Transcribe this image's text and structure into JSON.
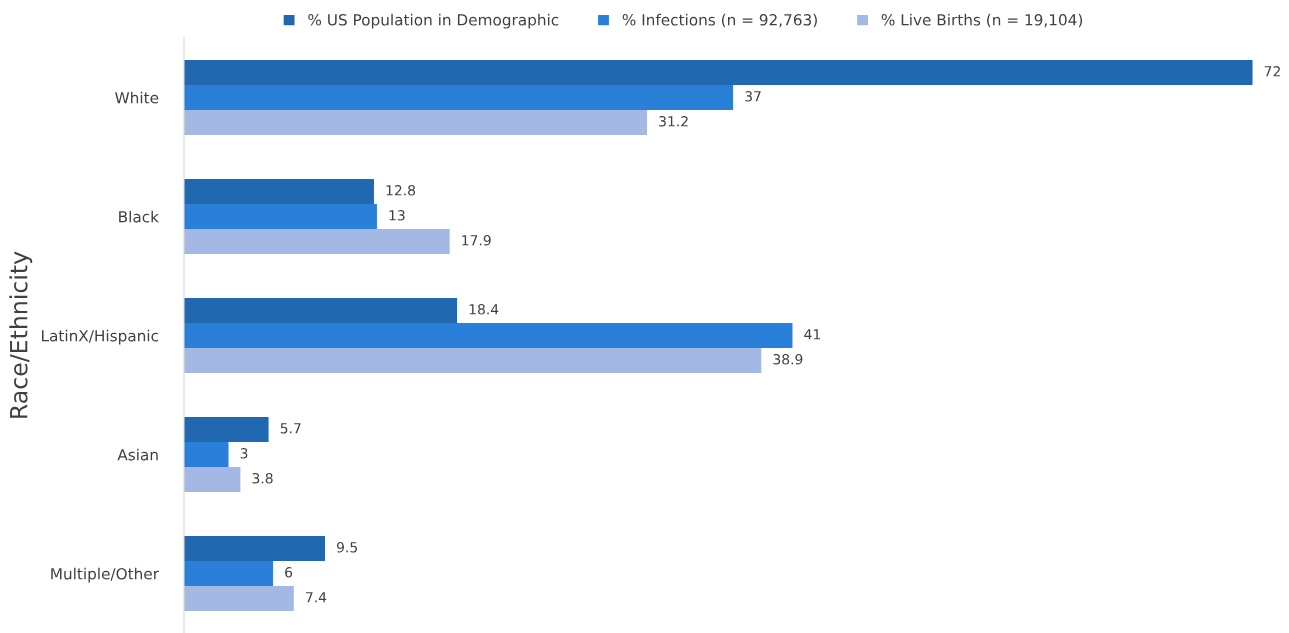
{
  "chart_data": {
    "type": "bar",
    "orientation": "horizontal",
    "ylabel": "Race/Ethnicity",
    "categories": [
      "White",
      "Black",
      "LatinX/Hispanic",
      "Asian",
      "Multiple/Other"
    ],
    "series": [
      {
        "name": "% US Population in Demographic",
        "color": "#2068b0",
        "values": [
          72,
          12.8,
          18.4,
          5.7,
          9.5
        ]
      },
      {
        "name": "% Infections (n = 92,763)",
        "color": "#2a80d8",
        "values": [
          37,
          13,
          41,
          3,
          6
        ]
      },
      {
        "name": "% Live Births (n = 19,104)",
        "color": "#a3b9e4",
        "values": [
          31.2,
          17.9,
          38.9,
          3.8,
          7.4
        ]
      }
    ],
    "data_labels": true,
    "legend": "top"
  }
}
